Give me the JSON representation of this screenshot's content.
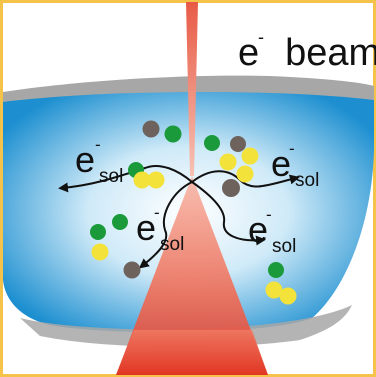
{
  "labels": {
    "beam": "beam",
    "beam_e": "e",
    "beam_sup": "-",
    "esol_e": "e",
    "esol_sup": "-",
    "esol_sub": "sol"
  },
  "colors": {
    "frame": "#f6c34a",
    "liquid_edge": "#1d8fd0",
    "liquid_center": "#ffffff",
    "membrane": "#a7a7a7",
    "beam": "#e74c3c",
    "green_particle": "#1a9a3a",
    "yellow_particle": "#f3e23a",
    "dark_particle": "#6e625d"
  }
}
